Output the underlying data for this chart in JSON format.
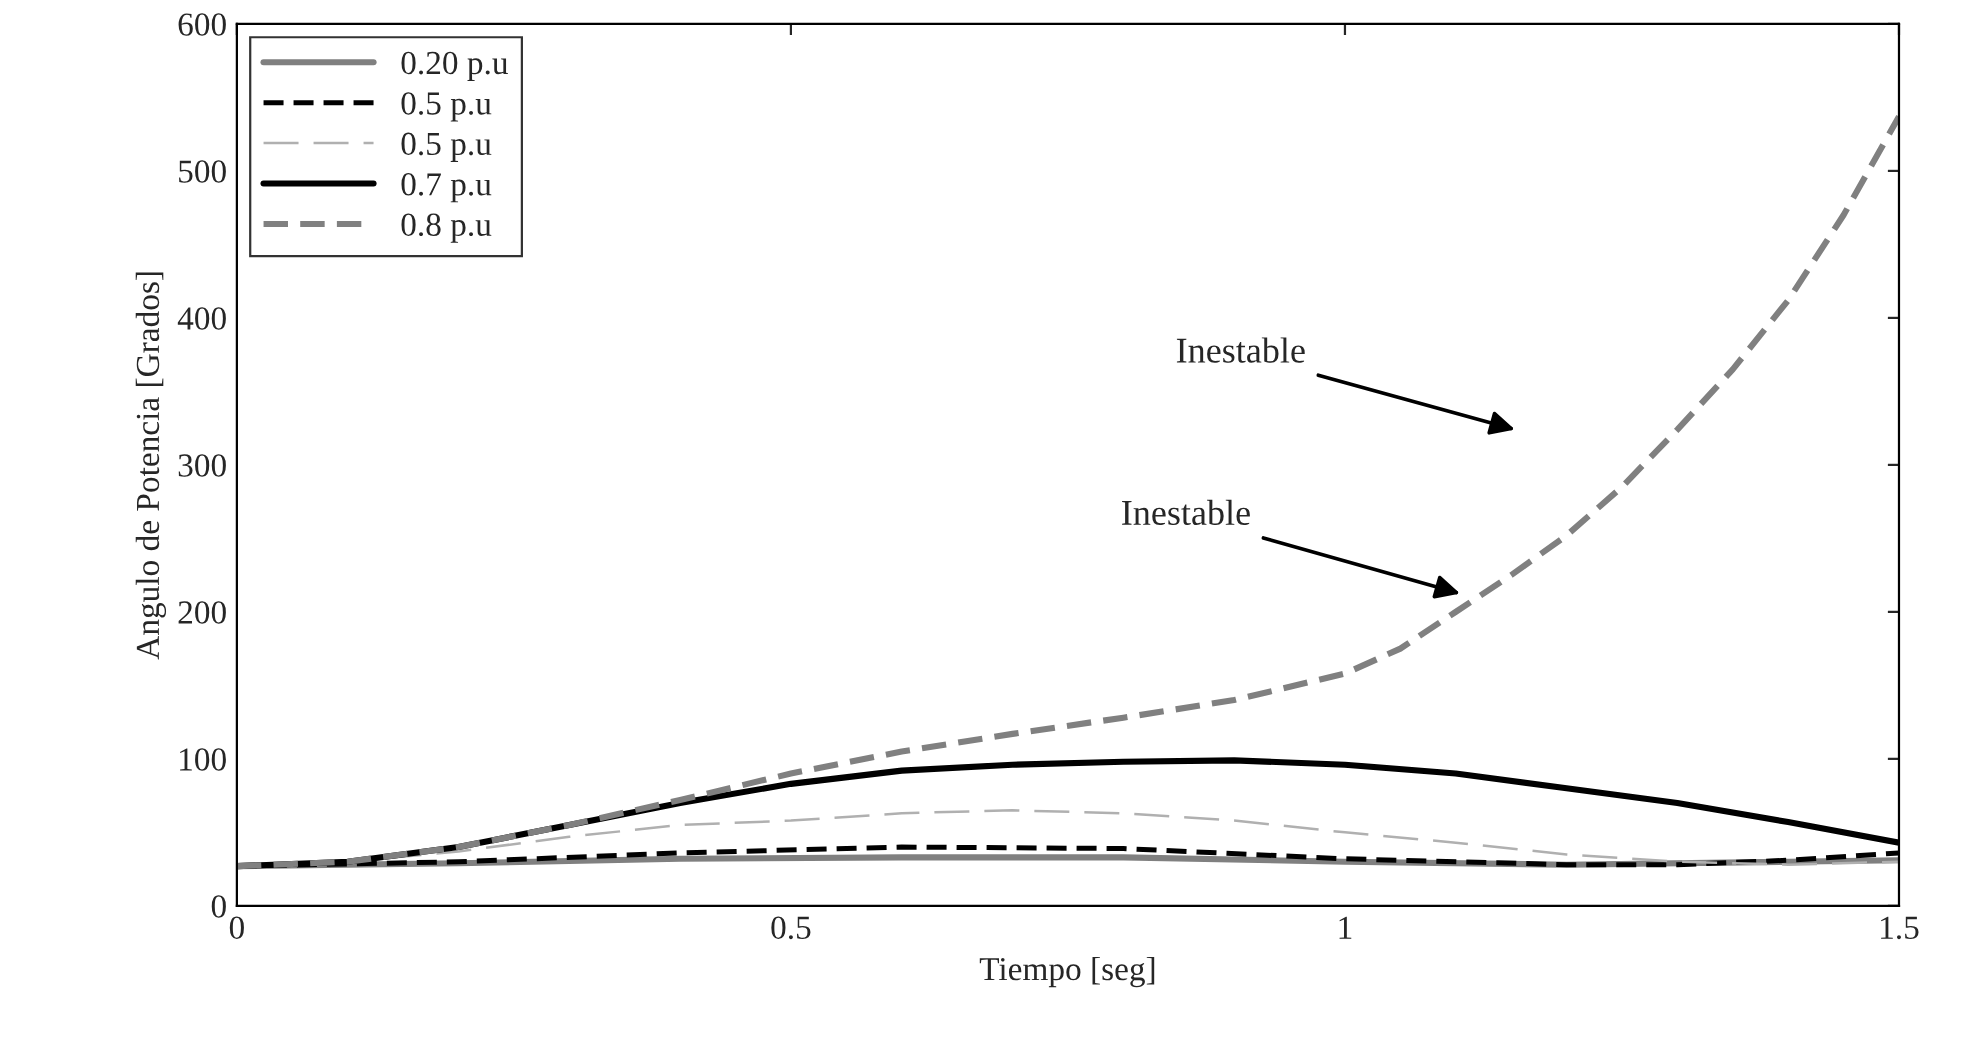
{
  "chart_data": {
    "type": "line",
    "xlabel": "Tiempo [seg]",
    "ylabel": "Angulo de Potencia [Grados]",
    "xlim": [
      0,
      1.5
    ],
    "xticks": [
      0,
      0.5,
      1,
      1.5
    ],
    "ylim": [
      0,
      600
    ],
    "yticks": [
      0,
      100,
      200,
      300,
      400,
      500,
      600
    ],
    "grid": false,
    "legend": "top left",
    "marker": "none",
    "series": [
      {
        "name": "0.20 p.u",
        "color": "#808080",
        "line_style": "solid",
        "x": [
          0,
          0.2,
          0.4,
          0.6,
          0.8,
          1.0,
          1.2,
          1.4,
          1.5
        ],
        "values": [
          27,
          29,
          32,
          33,
          33,
          30,
          28,
          30,
          31
        ]
      },
      {
        "name": "0.5 p.u",
        "color": "#000000",
        "line_style": "dashed",
        "x": [
          0,
          0.2,
          0.4,
          0.6,
          0.8,
          1.0,
          1.2,
          1.3,
          1.4,
          1.5
        ],
        "values": [
          27,
          30,
          36,
          40,
          39,
          32,
          28,
          28,
          31,
          36
        ]
      },
      {
        "name": "0.5 p.u",
        "color": "#b0b0b0",
        "line_style": "dashed",
        "x": [
          0,
          0.1,
          0.2,
          0.3,
          0.4,
          0.5,
          0.6,
          0.7,
          0.8,
          0.9,
          1.0,
          1.1,
          1.2,
          1.3,
          1.4,
          1.5
        ],
        "values": [
          27,
          30,
          37,
          47,
          55,
          58,
          63,
          65,
          63,
          58,
          50,
          43,
          35,
          30,
          28,
          30
        ]
      },
      {
        "name": "0.7 p.u",
        "color": "#000000",
        "line_style": "solid",
        "x": [
          0,
          0.1,
          0.2,
          0.3,
          0.4,
          0.5,
          0.6,
          0.7,
          0.8,
          0.9,
          1.0,
          1.1,
          1.2,
          1.3,
          1.4,
          1.5
        ],
        "values": [
          27,
          30,
          40,
          55,
          70,
          83,
          92,
          96,
          98,
          99,
          96,
          90,
          80,
          70,
          57,
          43
        ]
      },
      {
        "name": "0.8 p.u",
        "color": "#808080",
        "line_style": "dashed",
        "x": [
          0,
          0.1,
          0.2,
          0.3,
          0.4,
          0.5,
          0.6,
          0.7,
          0.8,
          0.9,
          1.0,
          1.05,
          1.1,
          1.15,
          1.2,
          1.25,
          1.3,
          1.35,
          1.4,
          1.45,
          1.5
        ],
        "values": [
          27,
          30,
          40,
          55,
          72,
          90,
          105,
          117,
          128,
          140,
          158,
          175,
          200,
          225,
          252,
          285,
          324,
          365,
          412,
          470,
          537
        ]
      }
    ],
    "annotations": [
      "Inestable",
      "Inestable"
    ]
  }
}
